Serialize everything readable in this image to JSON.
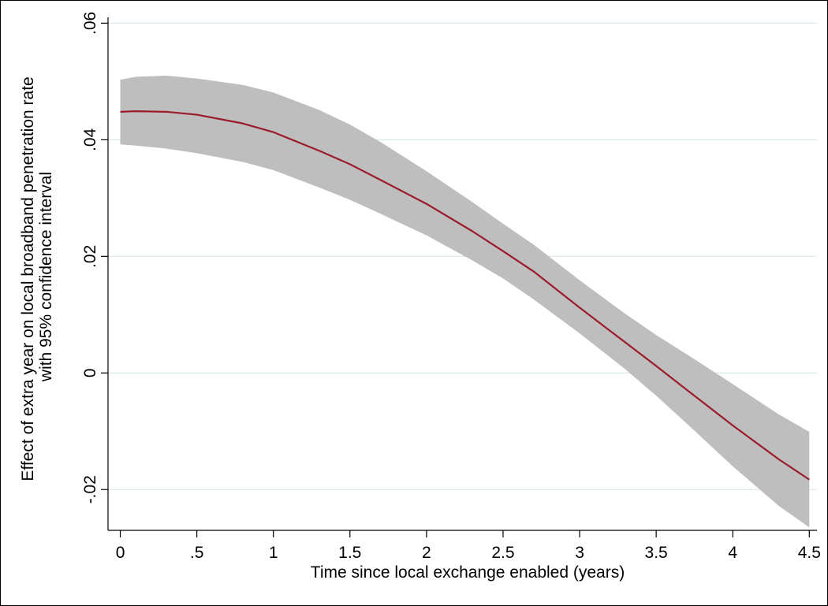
{
  "chart_data": {
    "type": "line",
    "title": "",
    "xlabel": "Time since local exchange enabled (years)",
    "ylabel_lines": [
      "Effect of extra year on local broadband penetration rate",
      "with 95% confidence interval"
    ],
    "xlim": [
      -0.08,
      4.55
    ],
    "ylim": [
      -0.027,
      0.061
    ],
    "x_ticks": [
      {
        "value": 0,
        "label": "0"
      },
      {
        "value": 0.5,
        "label": ".5"
      },
      {
        "value": 1,
        "label": "1"
      },
      {
        "value": 1.5,
        "label": "1.5"
      },
      {
        "value": 2,
        "label": "2"
      },
      {
        "value": 2.5,
        "label": "2.5"
      },
      {
        "value": 3,
        "label": "3"
      },
      {
        "value": 3.5,
        "label": "3.5"
      },
      {
        "value": 4,
        "label": "4"
      },
      {
        "value": 4.5,
        "label": "4.5"
      }
    ],
    "y_ticks": [
      {
        "value": -0.02,
        "label": "-.02"
      },
      {
        "value": 0,
        "label": "0"
      },
      {
        "value": 0.02,
        "label": ".02"
      },
      {
        "value": 0.04,
        "label": ".04"
      },
      {
        "value": 0.06,
        "label": ".06"
      }
    ],
    "grid": true,
    "gridlines": "horizontal",
    "legend": "none",
    "colors": {
      "line": "#9b1b2b",
      "band": "#bebebe",
      "grid": "#dce8ec",
      "axis": "#000000"
    },
    "x": [
      0,
      0.1,
      0.3,
      0.5,
      0.8,
      1.0,
      1.3,
      1.5,
      1.7,
      2.0,
      2.3,
      2.5,
      2.7,
      3.0,
      3.3,
      3.5,
      3.7,
      4.0,
      4.3,
      4.5
    ],
    "series": [
      {
        "kind": "estimate",
        "values": [
          0.0448,
          0.0449,
          0.0448,
          0.0443,
          0.0428,
          0.0413,
          0.0381,
          0.0358,
          0.0331,
          0.029,
          0.0243,
          0.0209,
          0.0174,
          0.0112,
          0.0052,
          0.0012,
          -0.0029,
          -0.009,
          -0.0148,
          -0.0183
        ]
      },
      {
        "kind": "upper_95",
        "values": [
          0.0503,
          0.0508,
          0.051,
          0.0505,
          0.0494,
          0.0481,
          0.0451,
          0.0426,
          0.0396,
          0.0346,
          0.0293,
          0.0256,
          0.022,
          0.0159,
          0.0101,
          0.0065,
          0.0032,
          -0.0019,
          -0.0071,
          -0.0101
        ]
      },
      {
        "kind": "lower_95",
        "values": [
          0.0392,
          0.039,
          0.0385,
          0.0377,
          0.0362,
          0.0348,
          0.0318,
          0.0297,
          0.0273,
          0.0236,
          0.0193,
          0.0162,
          0.0126,
          0.0068,
          0.0006,
          -0.0039,
          -0.0087,
          -0.016,
          -0.0228,
          -0.0265
        ]
      }
    ]
  }
}
